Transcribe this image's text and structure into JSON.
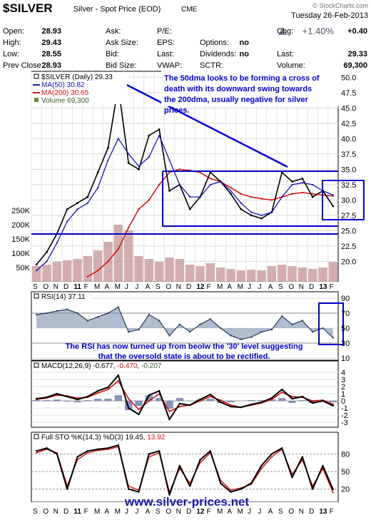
{
  "header": {
    "symbol": "$SILVER",
    "name": "Silver - Spot Price (EOD)",
    "exchange": "CME",
    "watermark": "© StockCharts.com",
    "date": "Tuesday  26-Feb-2013",
    "change_pct": "+1.40%",
    "quote_rows": [
      [
        [
          "Open:",
          "28.93"
        ],
        [
          "Ask:",
          ""
        ],
        [
          "P/E:",
          ""
        ],
        [
          "Chg:",
          "+0.40"
        ]
      ],
      [
        [
          "High:",
          "29.43"
        ],
        [
          "Ask Size:",
          ""
        ],
        [
          "EPS:",
          ""
        ],
        [
          "Options:",
          "no"
        ]
      ],
      [
        [
          "Low:",
          "28.55"
        ],
        [
          "Bid:",
          ""
        ],
        [
          "Last:",
          ""
        ],
        [
          "Dividends:",
          "no"
        ],
        [
          "Last:",
          "29.33"
        ]
      ],
      [
        [
          "Prev Close:",
          "28.93"
        ],
        [
          "Bid Size:",
          ""
        ],
        [
          "VWAP:",
          ""
        ],
        [
          "SCTR:",
          ""
        ],
        [
          "Volume:",
          "69,300"
        ]
      ]
    ]
  },
  "colors": {
    "price": "#000000",
    "ma50": "#1515b8",
    "ma200": "#d01010",
    "volume": "#c89a9a",
    "annotation_blue": "#0000cc",
    "rsi_fill": "#6f86a6",
    "macd_hist": "#6a78a8",
    "sto_pct_d": "#d01010"
  },
  "main_panel": {
    "legend": {
      "price": "$SILVER (Daily) 29.33",
      "ma50": "MA(50) 30.82",
      "ma200": "MA(200) 30.65",
      "volume": "Volume 69,300"
    },
    "annotation": "The 50dma looks to be forming a cross of death with its downward swing towards the 200dma, usually negative for silver prices.",
    "y_ticks": [
      "50.0",
      "47.5",
      "45.0",
      "42.5",
      "40.0",
      "37.5",
      "35.0",
      "32.5",
      "30.0",
      "27.5",
      "25.0",
      "22.5",
      "20.0"
    ],
    "volume_ticks": [
      "250K",
      "200K",
      "150K",
      "100K",
      "50K"
    ],
    "x_labels": [
      "S",
      "O",
      "N",
      "D",
      "11",
      "F",
      "M",
      "A",
      "M",
      "J",
      "J",
      "A",
      "S",
      "O",
      "N",
      "D",
      "12",
      "F",
      "M",
      "A",
      "M",
      "J",
      "J",
      "A",
      "S",
      "O",
      "N",
      "D",
      "13",
      "F"
    ]
  },
  "rsi_panel": {
    "legend": "RSI(14) 37.11",
    "ticks": [
      "90",
      "70",
      "50",
      "30",
      "10"
    ],
    "annotation": "The RSI has now turned up from beolw the '30' level suggesting that the oversold state is about to be rectified."
  },
  "macd_panel": {
    "legend_prefix": "MACD(12,26,9) -0.677, ",
    "legend_signal": "-0.470",
    "legend_sep": ", ",
    "legend_hist": "-0.207",
    "ticks": [
      "4",
      "3",
      "2",
      "1",
      "0",
      "-1",
      "-2",
      "-3"
    ]
  },
  "sto_panel": {
    "legend_prefix": "Full STO %K(14,3) %D(3) 19.45, ",
    "legend_d": "13.92",
    "ticks": [
      "80",
      "50",
      "20"
    ]
  },
  "footer": {
    "url": "www.silver-prices.net"
  },
  "chart_data": [
    {
      "type": "line",
      "title": "$SILVER (Daily) 29.33",
      "x_labels": [
        "S",
        "O",
        "N",
        "D",
        "11",
        "F",
        "M",
        "A",
        "M",
        "J",
        "J",
        "A",
        "S",
        "O",
        "N",
        "D",
        "12",
        "F",
        "M",
        "A",
        "M",
        "J",
        "J",
        "A",
        "S",
        "O",
        "N",
        "D",
        "13",
        "F"
      ],
      "ylim": [
        19,
        50.5
      ],
      "series": [
        {
          "name": "$SILVER (Daily) 29.33",
          "values": [
            19.5,
            21.5,
            24.5,
            28.5,
            29.5,
            30.5,
            34.5,
            38.5,
            48.5,
            36.0,
            35.0,
            40.5,
            41.5,
            31.5,
            32.5,
            28.5,
            30.5,
            34.5,
            33.0,
            31.0,
            28.5,
            27.5,
            27.0,
            28.0,
            34.5,
            33.0,
            33.5,
            30.5,
            31.5,
            29.0
          ]
        },
        {
          "name": "MA(50) 30.82",
          "values": [
            18.5,
            20.0,
            23.0,
            26.5,
            28.5,
            29.5,
            32.0,
            36.5,
            40.0,
            37.5,
            35.5,
            37.0,
            40.5,
            36.5,
            32.5,
            30.5,
            30.5,
            32.5,
            33.0,
            31.5,
            29.5,
            28.0,
            27.5,
            28.0,
            30.5,
            32.5,
            32.8,
            32.5,
            31.5,
            30.8
          ]
        },
        {
          "name": "MA(200) 30.65",
          "values": [
            null,
            null,
            null,
            null,
            null,
            17.5,
            18.5,
            20.0,
            22.0,
            25.5,
            28.5,
            30.0,
            32.5,
            34.5,
            35.0,
            34.8,
            34.5,
            33.5,
            33.0,
            32.0,
            31.0,
            30.5,
            30.2,
            30.0,
            30.5,
            31.0,
            31.2,
            31.0,
            30.8,
            30.65
          ]
        }
      ],
      "annotations": {
        "horizontal_lines": [
          35.0,
          26.5,
          25.5
        ],
        "triangle_top_line": [
          [
            48.5,
            0.085
          ],
          [
            35.2,
            0.81
          ]
        ]
      }
    },
    {
      "type": "bar",
      "title": "Volume 69,300",
      "ylim": [
        0,
        250000
      ],
      "values": [
        55000,
        60000,
        70000,
        75000,
        80000,
        90000,
        110000,
        140000,
        200000,
        180000,
        90000,
        80000,
        70000,
        85000,
        80000,
        60000,
        55000,
        65000,
        50000,
        45000,
        40000,
        42000,
        40000,
        55000,
        60000,
        55000,
        50000,
        45000,
        50000,
        69300
      ]
    },
    {
      "type": "area",
      "title": "RSI(14) 37.11",
      "ylim": [
        10,
        90
      ],
      "values": [
        68,
        70,
        73,
        75,
        70,
        60,
        65,
        70,
        78,
        45,
        48,
        68,
        60,
        40,
        55,
        45,
        55,
        62,
        50,
        40,
        35,
        38,
        45,
        48,
        66,
        55,
        60,
        45,
        50,
        37
      ]
    },
    {
      "type": "line",
      "title": "MACD(12,26,9) -0.677, -0.470, -0.207",
      "ylim": [
        -3.5,
        4.2
      ],
      "series": [
        {
          "name": "MACD(12,26,9) -0.677",
          "values": [
            0.3,
            0.5,
            1.0,
            0.6,
            0.2,
            0.6,
            1.4,
            1.9,
            3.6,
            -1.0,
            -1.9,
            0.8,
            1.4,
            -2.6,
            -0.4,
            -0.6,
            0.2,
            0.9,
            -0.2,
            -0.8,
            -0.9,
            -0.5,
            -0.2,
            0.4,
            1.6,
            0.3,
            0.6,
            -0.3,
            0.0,
            -0.677
          ]
        },
        {
          "name": "-0.470",
          "values": [
            0.2,
            0.4,
            0.8,
            0.7,
            0.4,
            0.5,
            1.1,
            1.6,
            2.8,
            0.3,
            -1.2,
            0.0,
            1.0,
            -1.5,
            -0.8,
            -0.6,
            0.0,
            0.6,
            0.1,
            -0.6,
            -0.9,
            -0.6,
            -0.3,
            0.2,
            1.2,
            0.6,
            0.5,
            0.0,
            0.1,
            -0.47
          ]
        },
        {
          "name": "-0.207",
          "values": [
            0.1,
            0.1,
            0.2,
            -0.1,
            -0.2,
            0.1,
            0.3,
            0.3,
            0.8,
            -1.3,
            -0.7,
            0.8,
            0.4,
            -1.1,
            0.4,
            0.0,
            0.2,
            0.3,
            -0.3,
            -0.2,
            0.0,
            0.1,
            0.1,
            0.2,
            0.4,
            -0.3,
            0.1,
            -0.3,
            -0.1,
            -0.207
          ]
        }
      ]
    },
    {
      "type": "line",
      "title": "Full STO %K(14,3) %D(3) 19.45, 13.92",
      "ylim": [
        0,
        100
      ],
      "series": [
        {
          "name": "%K",
          "values": [
            85,
            90,
            80,
            20,
            75,
            85,
            88,
            90,
            95,
            20,
            15,
            80,
            85,
            10,
            60,
            25,
            70,
            85,
            30,
            15,
            20,
            30,
            60,
            80,
            90,
            40,
            75,
            20,
            60,
            19.45
          ]
        },
        {
          "name": "%D",
          "values": [
            82,
            88,
            82,
            25,
            70,
            82,
            86,
            88,
            92,
            25,
            18,
            75,
            82,
            15,
            55,
            30,
            65,
            82,
            35,
            18,
            22,
            28,
            55,
            75,
            88,
            45,
            70,
            25,
            55,
            13.92
          ]
        }
      ]
    }
  ]
}
